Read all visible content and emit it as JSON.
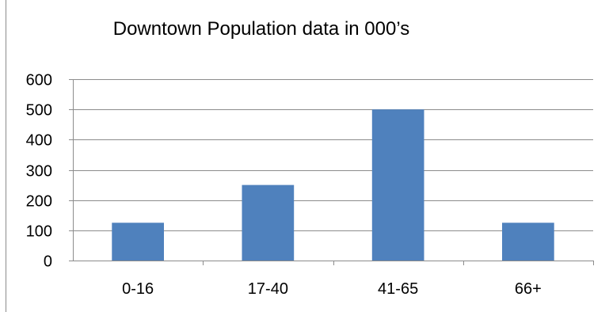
{
  "chart_data": {
    "type": "bar",
    "title": "Downtown Population data in 000’s",
    "categories": [
      "0-16",
      "17-40",
      "41-65",
      "66+"
    ],
    "values": [
      125,
      250,
      500,
      125
    ],
    "ylim": [
      0,
      600
    ],
    "yticks": [
      0,
      100,
      200,
      300,
      400,
      500,
      600
    ],
    "xlabel": "",
    "ylabel": "",
    "grid": true,
    "legend": "none",
    "colors": {
      "bar": "#4f81bd",
      "grid": "#8c8c8c",
      "axis": "#8c8c8c",
      "text": "#000000",
      "border": "#8c8c8c"
    }
  }
}
